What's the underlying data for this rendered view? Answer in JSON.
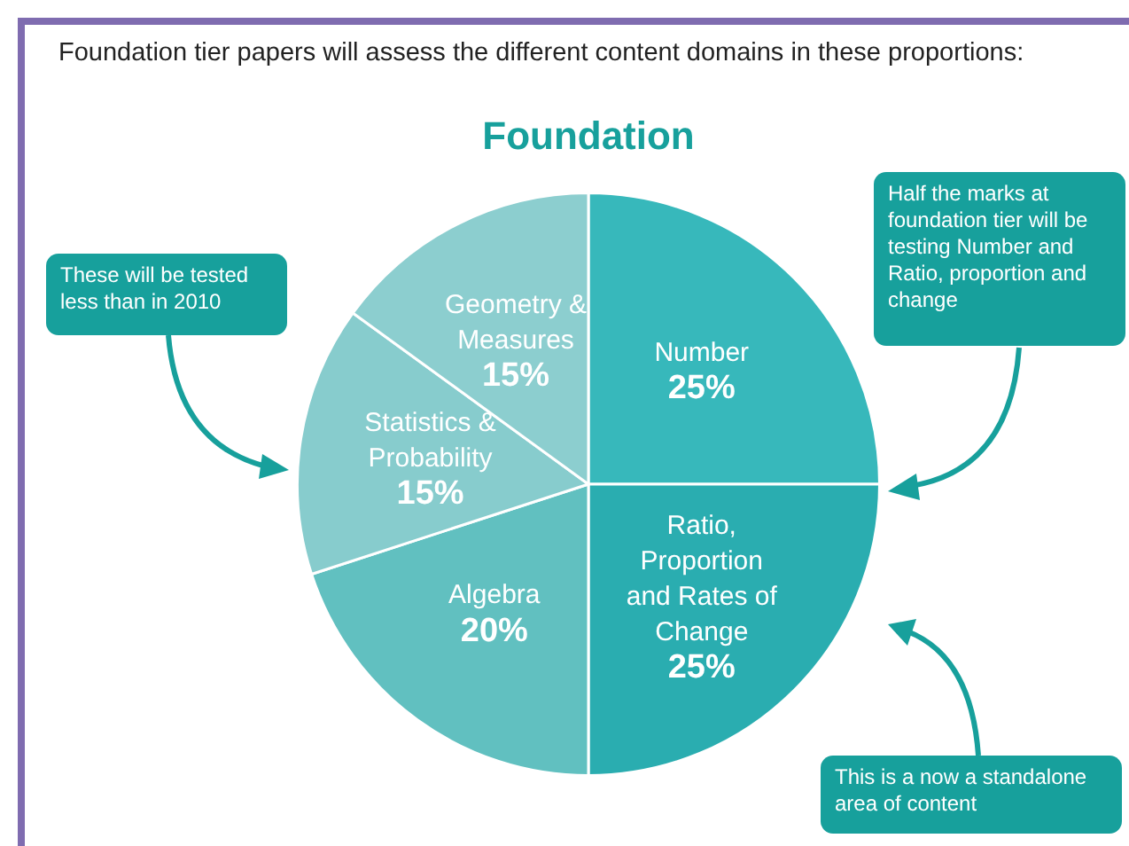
{
  "chart_data": {
    "type": "pie",
    "title": "Foundation",
    "subtitle": "Foundation tier papers will assess the different content domains in these proportions:",
    "categories": [
      "Number",
      "Ratio, Proportion and Rates of Change",
      "Algebra",
      "Statistics & Probability",
      "Geometry & Measures"
    ],
    "values": [
      25,
      25,
      20,
      15,
      15
    ],
    "value_labels": [
      "25%",
      "25%",
      "20%",
      "15%",
      "15%"
    ],
    "colors": [
      "#37b8bb",
      "#2aadb0",
      "#61c0c0",
      "#87cccd",
      "#8ccecf"
    ],
    "annotations": [
      "These will be tested less than in 2010",
      "Half the marks at foundation tier will be testing Number and Ratio, proportion and change",
      "This is a now a standalone area of content"
    ],
    "legend": false
  }
}
